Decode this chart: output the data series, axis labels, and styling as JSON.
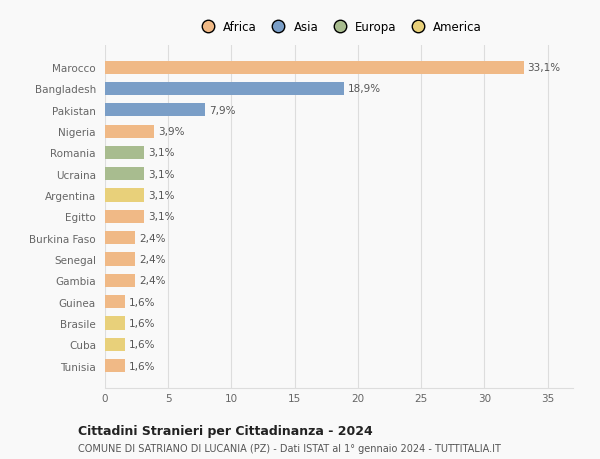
{
  "countries": [
    "Marocco",
    "Bangladesh",
    "Pakistan",
    "Nigeria",
    "Romania",
    "Ucraina",
    "Argentina",
    "Egitto",
    "Burkina Faso",
    "Senegal",
    "Gambia",
    "Guinea",
    "Brasile",
    "Cuba",
    "Tunisia"
  ],
  "values": [
    33.1,
    18.9,
    7.9,
    3.9,
    3.1,
    3.1,
    3.1,
    3.1,
    2.4,
    2.4,
    2.4,
    1.6,
    1.6,
    1.6,
    1.6
  ],
  "labels": [
    "33,1%",
    "18,9%",
    "7,9%",
    "3,9%",
    "3,1%",
    "3,1%",
    "3,1%",
    "3,1%",
    "2,4%",
    "2,4%",
    "2,4%",
    "1,6%",
    "1,6%",
    "1,6%",
    "1,6%"
  ],
  "continents": [
    "Africa",
    "Asia",
    "Asia",
    "Africa",
    "Europa",
    "Europa",
    "America",
    "Africa",
    "Africa",
    "Africa",
    "Africa",
    "Africa",
    "America",
    "America",
    "Africa"
  ],
  "colors": {
    "Africa": "#F0B986",
    "Asia": "#7A9EC7",
    "Europa": "#A8BC8F",
    "America": "#E8D07A"
  },
  "legend_order": [
    "Africa",
    "Asia",
    "Europa",
    "America"
  ],
  "legend_colors": [
    "#F0B986",
    "#7A9EC7",
    "#A8BC8F",
    "#E8D07A"
  ],
  "title1": "Cittadini Stranieri per Cittadinanza - 2024",
  "title2": "COMUNE DI SATRIANO DI LUCANIA (PZ) - Dati ISTAT al 1° gennaio 2024 - TUTTITALIA.IT",
  "xlim": [
    0,
    37
  ],
  "xticks": [
    0,
    5,
    10,
    15,
    20,
    25,
    30,
    35
  ],
  "background_color": "#f9f9f9",
  "grid_color": "#dddddd"
}
